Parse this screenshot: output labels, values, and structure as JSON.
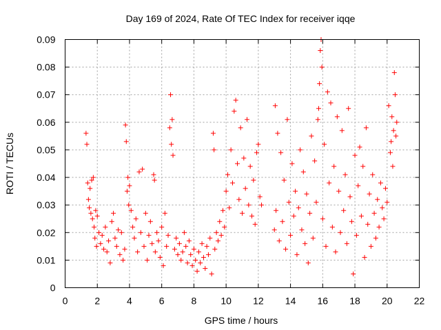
{
  "chart_data": {
    "type": "scatter",
    "title": "Day 169 of 2024, Rate Of TEC Index for receiver iqqe",
    "xlabel": "GPS time / hours",
    "ylabel": "ROTI / TECUs",
    "xlim": [
      0,
      22
    ],
    "ylim": [
      0,
      0.09
    ],
    "xticks": [
      "0",
      "2",
      "4",
      "6",
      "8",
      "10",
      "12",
      "14",
      "16",
      "18",
      "20",
      "22"
    ],
    "yticks": [
      "0",
      "0.01",
      "0.02",
      "0.03",
      "0.04",
      "0.05",
      "0.06",
      "0.07",
      "0.08",
      "0.09"
    ],
    "grid": true,
    "marker": "plus",
    "color": "#ff0000",
    "series": [
      {
        "name": "ROTI",
        "points": [
          [
            1.3,
            0.056
          ],
          [
            1.35,
            0.052
          ],
          [
            1.4,
            0.038
          ],
          [
            1.45,
            0.032
          ],
          [
            1.5,
            0.029
          ],
          [
            1.55,
            0.036
          ],
          [
            1.6,
            0.027
          ],
          [
            1.65,
            0.039
          ],
          [
            1.7,
            0.025
          ],
          [
            1.75,
            0.04
          ],
          [
            1.8,
            0.022
          ],
          [
            1.85,
            0.018
          ],
          [
            1.9,
            0.028
          ],
          [
            1.95,
            0.015
          ],
          [
            2.0,
            0.026
          ],
          [
            2.1,
            0.02
          ],
          [
            2.2,
            0.016
          ],
          [
            2.3,
            0.019
          ],
          [
            2.4,
            0.014
          ],
          [
            2.5,
            0.022
          ],
          [
            2.6,
            0.013
          ],
          [
            2.7,
            0.017
          ],
          [
            2.8,
            0.009
          ],
          [
            2.9,
            0.024
          ],
          [
            3.0,
            0.027
          ],
          [
            3.1,
            0.018
          ],
          [
            3.2,
            0.015
          ],
          [
            3.3,
            0.021
          ],
          [
            3.4,
            0.012
          ],
          [
            3.5,
            0.02
          ],
          [
            3.6,
            0.01
          ],
          [
            3.7,
            0.014
          ],
          [
            3.75,
            0.059
          ],
          [
            3.8,
            0.053
          ],
          [
            3.85,
            0.035
          ],
          [
            3.9,
            0.04
          ],
          [
            3.95,
            0.03
          ],
          [
            4.0,
            0.037
          ],
          [
            4.1,
            0.028
          ],
          [
            4.2,
            0.022
          ],
          [
            4.3,
            0.018
          ],
          [
            4.4,
            0.025
          ],
          [
            4.5,
            0.013
          ],
          [
            4.6,
            0.042
          ],
          [
            4.7,
            0.02
          ],
          [
            4.8,
            0.043
          ],
          [
            4.9,
            0.015
          ],
          [
            5.0,
            0.027
          ],
          [
            5.1,
            0.01
          ],
          [
            5.2,
            0.019
          ],
          [
            5.3,
            0.024
          ],
          [
            5.4,
            0.016
          ],
          [
            5.5,
            0.041
          ],
          [
            5.55,
            0.039
          ],
          [
            5.6,
            0.013
          ],
          [
            5.7,
            0.02
          ],
          [
            5.8,
            0.017
          ],
          [
            5.9,
            0.011
          ],
          [
            6.0,
            0.022
          ],
          [
            6.1,
            0.008
          ],
          [
            6.2,
            0.027
          ],
          [
            6.3,
            0.015
          ],
          [
            6.4,
            0.019
          ],
          [
            6.5,
            0.058
          ],
          [
            6.55,
            0.07
          ],
          [
            6.6,
            0.052
          ],
          [
            6.65,
            0.061
          ],
          [
            6.7,
            0.048
          ],
          [
            6.8,
            0.014
          ],
          [
            6.9,
            0.018
          ],
          [
            7.0,
            0.012
          ],
          [
            7.1,
            0.016
          ],
          [
            7.2,
            0.01
          ],
          [
            7.3,
            0.013
          ],
          [
            7.4,
            0.02
          ],
          [
            7.5,
            0.015
          ],
          [
            7.6,
            0.009
          ],
          [
            7.7,
            0.017
          ],
          [
            7.8,
            0.012
          ],
          [
            7.9,
            0.008
          ],
          [
            8.0,
            0.014
          ],
          [
            8.1,
            0.01
          ],
          [
            8.2,
            0.006
          ],
          [
            8.3,
            0.013
          ],
          [
            8.4,
            0.009
          ],
          [
            8.5,
            0.016
          ],
          [
            8.6,
            0.011
          ],
          [
            8.7,
            0.007
          ],
          [
            8.8,
            0.015
          ],
          [
            8.9,
            0.012
          ],
          [
            9.0,
            0.018
          ],
          [
            9.1,
            0.005
          ],
          [
            9.2,
            0.056
          ],
          [
            9.25,
            0.05
          ],
          [
            9.3,
            0.014
          ],
          [
            9.4,
            0.02
          ],
          [
            9.5,
            0.017
          ],
          [
            9.6,
            0.024
          ],
          [
            9.7,
            0.019
          ],
          [
            9.8,
            0.028
          ],
          [
            9.9,
            0.022
          ],
          [
            10.0,
            0.035
          ],
          [
            10.1,
            0.041
          ],
          [
            10.2,
            0.029
          ],
          [
            10.3,
            0.05
          ],
          [
            10.4,
            0.038
          ],
          [
            10.5,
            0.064
          ],
          [
            10.6,
            0.068
          ],
          [
            10.7,
            0.045
          ],
          [
            10.8,
            0.032
          ],
          [
            10.9,
            0.058
          ],
          [
            11.0,
            0.027
          ],
          [
            11.1,
            0.047
          ],
          [
            11.2,
            0.036
          ],
          [
            11.3,
            0.061
          ],
          [
            11.4,
            0.03
          ],
          [
            11.5,
            0.044
          ],
          [
            11.6,
            0.026
          ],
          [
            11.7,
            0.039
          ],
          [
            11.8,
            0.023
          ],
          [
            11.9,
            0.049
          ],
          [
            12.0,
            0.052
          ],
          [
            12.1,
            0.033
          ],
          [
            12.2,
            0.03
          ],
          [
            13.0,
            0.021
          ],
          [
            13.05,
            0.066
          ],
          [
            13.1,
            0.028
          ],
          [
            13.2,
            0.056
          ],
          [
            13.3,
            0.017
          ],
          [
            13.4,
            0.049
          ],
          [
            13.5,
            0.024
          ],
          [
            13.6,
            0.039
          ],
          [
            13.7,
            0.014
          ],
          [
            13.8,
            0.061
          ],
          [
            13.9,
            0.031
          ],
          [
            14.0,
            0.019
          ],
          [
            14.1,
            0.045
          ],
          [
            14.2,
            0.026
          ],
          [
            14.3,
            0.035
          ],
          [
            14.4,
            0.012
          ],
          [
            14.5,
            0.029
          ],
          [
            14.6,
            0.05
          ],
          [
            14.7,
            0.021
          ],
          [
            14.8,
            0.042
          ],
          [
            14.9,
            0.016
          ],
          [
            15.0,
            0.034
          ],
          [
            15.1,
            0.009
          ],
          [
            15.2,
            0.027
          ],
          [
            15.3,
            0.055
          ],
          [
            15.4,
            0.018
          ],
          [
            15.5,
            0.046
          ],
          [
            15.6,
            0.031
          ],
          [
            15.7,
            0.061
          ],
          [
            15.75,
            0.065
          ],
          [
            15.8,
            0.074
          ],
          [
            15.85,
            0.086
          ],
          [
            15.9,
            0.09
          ],
          [
            15.95,
            0.08
          ],
          [
            16.0,
            0.025
          ],
          [
            16.1,
            0.052
          ],
          [
            16.2,
            0.015
          ],
          [
            16.3,
            0.071
          ],
          [
            16.4,
            0.038
          ],
          [
            16.5,
            0.067
          ],
          [
            16.6,
            0.022
          ],
          [
            16.7,
            0.044
          ],
          [
            16.8,
            0.013
          ],
          [
            16.9,
            0.062
          ],
          [
            17.0,
            0.035
          ],
          [
            17.1,
            0.02
          ],
          [
            17.2,
            0.057
          ],
          [
            17.3,
            0.028
          ],
          [
            17.4,
            0.041
          ],
          [
            17.5,
            0.016
          ],
          [
            17.6,
            0.065
          ],
          [
            17.7,
            0.033
          ],
          [
            17.8,
            0.024
          ],
          [
            17.9,
            0.005
          ],
          [
            18.0,
            0.048
          ],
          [
            18.1,
            0.019
          ],
          [
            18.2,
            0.037
          ],
          [
            18.3,
            0.051
          ],
          [
            18.4,
            0.026
          ],
          [
            18.5,
            0.044
          ],
          [
            18.6,
            0.011
          ],
          [
            18.7,
            0.058
          ],
          [
            18.8,
            0.023
          ],
          [
            18.9,
            0.034
          ],
          [
            19.0,
            0.015
          ],
          [
            19.1,
            0.041
          ],
          [
            19.2,
            0.027
          ],
          [
            19.3,
            0.018
          ],
          [
            19.4,
            0.032
          ],
          [
            19.5,
            0.022
          ],
          [
            19.6,
            0.038
          ],
          [
            19.7,
            0.029
          ],
          [
            19.8,
            0.025
          ],
          [
            19.9,
            0.036
          ],
          [
            20.0,
            0.031
          ],
          [
            20.1,
            0.066
          ],
          [
            20.2,
            0.049
          ],
          [
            20.25,
            0.053
          ],
          [
            20.3,
            0.062
          ],
          [
            20.35,
            0.044
          ],
          [
            20.4,
            0.057
          ],
          [
            20.45,
            0.078
          ],
          [
            20.5,
            0.07
          ],
          [
            20.55,
            0.055
          ],
          [
            20.6,
            0.06
          ]
        ]
      }
    ]
  }
}
